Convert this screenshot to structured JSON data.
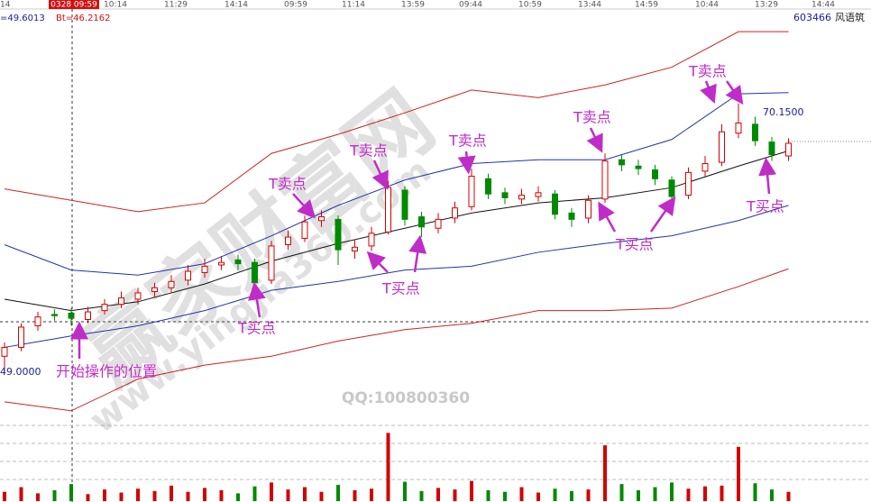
{
  "chart_data": {
    "type": "candlestick",
    "header": {
      "code": "603466",
      "name": "风语筑",
      "left_value": "=49.6013",
      "bt": "Bt=46.2162",
      "cursor_time": "0328 09:59",
      "first_time": "14"
    },
    "time_labels": [
      "10:14",
      "11:29",
      "14:14",
      "09:59",
      "11:14",
      "13:59",
      "09:44",
      "10:59",
      "13:44",
      "14:59",
      "10:44",
      "13:29",
      "14:44"
    ],
    "ylim": [
      45.6,
      78.3
    ],
    "open": [
      50.2,
      50.9,
      52.6,
      53.5,
      53.6,
      53.1,
      53.8,
      54.3,
      54.7,
      55.3,
      55.6,
      56.2,
      56.8,
      57.4,
      57.8,
      57.6,
      56.2,
      59.0,
      59.5,
      60.9,
      61.0,
      58.5,
      58.9,
      60.0,
      63.3,
      61.2,
      60.3,
      61.1,
      62.0,
      64.2,
      63.1,
      62.6,
      62.8,
      63.0,
      61.5,
      61.1,
      62.6,
      65.7,
      65.2,
      64.9,
      64.1,
      62.9,
      64.8,
      65.5,
      67.8,
      68.5,
      67.1,
      66.0
    ],
    "high": [
      51.3,
      52.8,
      53.7,
      53.9,
      54.0,
      54.1,
      54.7,
      55.3,
      55.6,
      56.0,
      56.6,
      57.4,
      57.9,
      58.1,
      58.2,
      57.9,
      59.3,
      60.1,
      61.3,
      61.7,
      61.3,
      59.4,
      60.4,
      64.0,
      63.6,
      61.6,
      61.5,
      62.4,
      65.0,
      64.6,
      63.5,
      63.4,
      63.6,
      63.3,
      61.9,
      62.9,
      66.2,
      66.1,
      65.7,
      65.3,
      64.4,
      65.1,
      66.0,
      68.5,
      70.15,
      69.1,
      67.5,
      67.4
    ],
    "low": [
      49.0,
      50.6,
      52.2,
      53.0,
      52.6,
      52.8,
      53.5,
      54.0,
      54.3,
      54.9,
      55.2,
      55.8,
      56.4,
      57.0,
      57.0,
      55.3,
      55.9,
      58.6,
      59.2,
      60.4,
      57.4,
      57.9,
      58.5,
      59.8,
      60.5,
      59.6,
      59.9,
      60.7,
      61.7,
      62.6,
      62.2,
      62.2,
      62.4,
      61.0,
      60.4,
      60.7,
      62.3,
      64.8,
      64.5,
      63.7,
      62.3,
      62.6,
      64.4,
      65.2,
      67.4,
      66.8,
      65.6,
      65.6
    ],
    "close": [
      50.9,
      52.5,
      53.3,
      53.4,
      53.2,
      53.7,
      54.3,
      54.8,
      55.2,
      55.6,
      56.1,
      56.9,
      57.3,
      57.6,
      57.5,
      56.0,
      58.9,
      59.6,
      60.8,
      61.2,
      58.6,
      58.8,
      59.9,
      63.5,
      61.0,
      60.4,
      61.0,
      61.9,
      64.4,
      63.0,
      62.7,
      62.9,
      63.1,
      61.4,
      61.0,
      62.5,
      65.6,
      65.3,
      65.0,
      64.2,
      62.8,
      64.7,
      65.4,
      67.9,
      68.6,
      67.2,
      66.1,
      67.0
    ],
    "volume": [
      12,
      18,
      10,
      14,
      22,
      9,
      15,
      11,
      16,
      13,
      20,
      12,
      17,
      14,
      10,
      19,
      24,
      15,
      18,
      12,
      21,
      14,
      16,
      88,
      25,
      13,
      17,
      15,
      26,
      14,
      12,
      18,
      11,
      16,
      13,
      15,
      72,
      22,
      14,
      18,
      24,
      16,
      19,
      20,
      70,
      23,
      15,
      12
    ],
    "vlim": [
      0,
      100
    ],
    "up_color": "#d40000",
    "down_color": "#008a00",
    "bands": [
      {
        "color": "#cc2222",
        "x": [
          0,
          4,
          8,
          12,
          16,
          20,
          24,
          28,
          32,
          36,
          40,
          44,
          47
        ],
        "values": [
          63.4,
          62.5,
          61.6,
          62.3,
          66.2,
          67.7,
          69.4,
          71.2,
          70.6,
          71.6,
          73.0,
          75.8,
          75.8
        ]
      },
      {
        "color": "#2233aa",
        "x": [
          0,
          4,
          8,
          12,
          16,
          20,
          24,
          28,
          32,
          36,
          40,
          44,
          47
        ],
        "values": [
          59.0,
          57.0,
          56.6,
          57.5,
          59.7,
          62.1,
          64.1,
          65.4,
          65.7,
          65.7,
          67.3,
          70.9,
          71.0
        ]
      },
      {
        "color": "#111111",
        "x": [
          0,
          4,
          8,
          12,
          16,
          20,
          24,
          28,
          32,
          36,
          40,
          44,
          47
        ],
        "values": [
          54.7,
          53.8,
          54.5,
          55.9,
          57.7,
          59.1,
          60.3,
          61.5,
          62.3,
          62.7,
          63.5,
          65.2,
          66.4
        ]
      },
      {
        "color": "#2233aa",
        "x": [
          0,
          4,
          8,
          12,
          16,
          20,
          24,
          28,
          32,
          36,
          40,
          44,
          47
        ],
        "values": [
          50.9,
          51.8,
          52.6,
          53.8,
          55.4,
          56.1,
          57.0,
          57.3,
          58.4,
          59.1,
          59.7,
          60.9,
          62.1
        ]
      },
      {
        "color": "#cc2222",
        "x": [
          0,
          4,
          8,
          12,
          16,
          20,
          24,
          28,
          32,
          36,
          40,
          44,
          47
        ],
        "values": [
          46.6,
          45.9,
          48.4,
          49.5,
          50.2,
          51.4,
          52.3,
          52.8,
          53.8,
          53.8,
          54.0,
          55.7,
          57.1
        ]
      }
    ],
    "price_labels": {
      "high": "70.1500",
      "low": "49.0000"
    },
    "annotations": {
      "sell": "T卖点",
      "buy": "T买点",
      "start": "开始操作的位置"
    },
    "watermark": {
      "site": "赢家财富网",
      "url": "www.yingjia360.com",
      "qq": "QQ:100800360"
    }
  }
}
